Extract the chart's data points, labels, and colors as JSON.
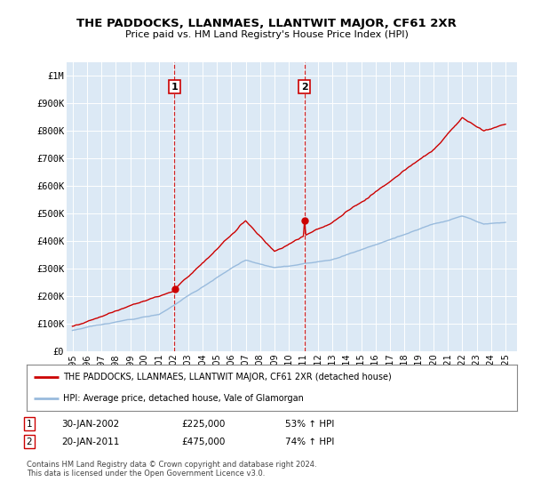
{
  "title": "THE PADDOCKS, LLANMAES, LLANTWIT MAJOR, CF61 2XR",
  "subtitle": "Price paid vs. HM Land Registry's House Price Index (HPI)",
  "background_color": "#ffffff",
  "plot_bg_color": "#dce9f5",
  "grid_color": "#ffffff",
  "red_line_color": "#cc0000",
  "blue_line_color": "#99bbdd",
  "event1_year": 2002.07,
  "event2_year": 2011.07,
  "event1_label": "1",
  "event2_label": "2",
  "event1_date": "30-JAN-2002",
  "event1_price": "£225,000",
  "event1_hpi": "53% ↑ HPI",
  "event2_date": "20-JAN-2011",
  "event2_price": "£475,000",
  "event2_hpi": "74% ↑ HPI",
  "legend_line1": "THE PADDOCKS, LLANMAES, LLANTWIT MAJOR, CF61 2XR (detached house)",
  "legend_line2": "HPI: Average price, detached house, Vale of Glamorgan",
  "footnote": "Contains HM Land Registry data © Crown copyright and database right 2024.\nThis data is licensed under the Open Government Licence v3.0.",
  "ylim": [
    0,
    1050000
  ],
  "yticks": [
    0,
    100000,
    200000,
    300000,
    400000,
    500000,
    600000,
    700000,
    800000,
    900000,
    1000000
  ],
  "ytick_labels": [
    "£0",
    "£100K",
    "£200K",
    "£300K",
    "£400K",
    "£500K",
    "£600K",
    "£700K",
    "£800K",
    "£900K",
    "£1M"
  ],
  "xmin": 1994.6,
  "xmax": 2025.8
}
